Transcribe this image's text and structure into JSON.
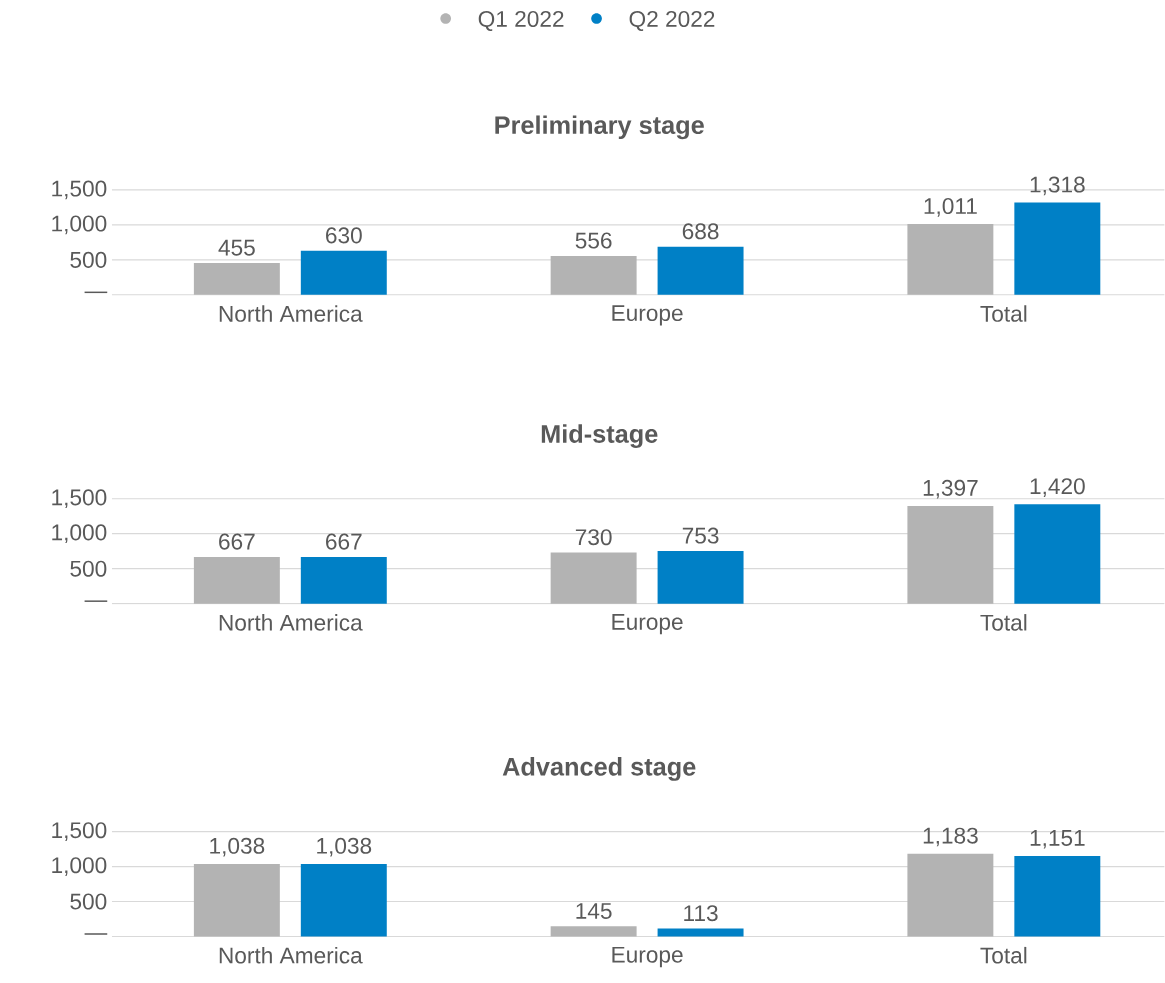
{
  "chart_data": [
    {
      "type": "bar",
      "title": "Preliminary stage",
      "categories": [
        "North America",
        "Europe",
        "Total"
      ],
      "ylim": [
        0,
        1500
      ],
      "yticks": [
        {
          "value": 0,
          "label": "—"
        },
        500,
        {
          "value": 1000,
          "label": "1,000"
        },
        {
          "value": 1500,
          "label": "1,500"
        }
      ],
      "grid": "y",
      "legend": "top",
      "series": [
        {
          "name": "Q1 2022",
          "color": "#b3b3b3",
          "values": [
            455,
            556,
            1011
          ],
          "value_labels": [
            "455",
            "556",
            "1,011"
          ]
        },
        {
          "name": "Q2 2022",
          "color": "#0080c6",
          "values": [
            630,
            688,
            1318
          ],
          "value_labels": [
            "630",
            "688",
            "1,318"
          ]
        }
      ]
    },
    {
      "type": "bar",
      "title": "Mid-stage",
      "categories": [
        "North America",
        "Europe",
        "Total"
      ],
      "ylim": [
        0,
        1500
      ],
      "yticks": [
        {
          "value": 0,
          "label": "—"
        },
        500,
        {
          "value": 1000,
          "label": "1,000"
        },
        {
          "value": 1500,
          "label": "1,500"
        }
      ],
      "grid": "y",
      "series": [
        {
          "color": "#b3b3b3",
          "values": [
            667,
            730,
            1397
          ],
          "value_labels": [
            "667",
            "730",
            "1,397"
          ]
        },
        {
          "color": "#0080c6",
          "values": [
            667,
            753,
            1420
          ],
          "value_labels": [
            "667",
            "753",
            "1,420"
          ]
        }
      ]
    },
    {
      "type": "bar",
      "title": "Advanced stage",
      "categories": [
        "North America",
        "Europe",
        "Total"
      ],
      "ylim": [
        0,
        1500
      ],
      "yticks": [
        {
          "value": 0,
          "label": "—"
        },
        500,
        {
          "value": 1000,
          "label": "1,000"
        },
        {
          "value": 1500,
          "label": "1,500"
        }
      ],
      "grid": "y",
      "series": [
        {
          "color": "#b3b3b3",
          "values": [
            1038,
            145,
            1183
          ],
          "value_labels": [
            "1,038",
            "145",
            "1,183"
          ]
        },
        {
          "color": "#0080c6",
          "values": [
            1038,
            113,
            1151
          ],
          "value_labels": [
            "1,038",
            "113",
            "1,151"
          ]
        }
      ]
    }
  ]
}
